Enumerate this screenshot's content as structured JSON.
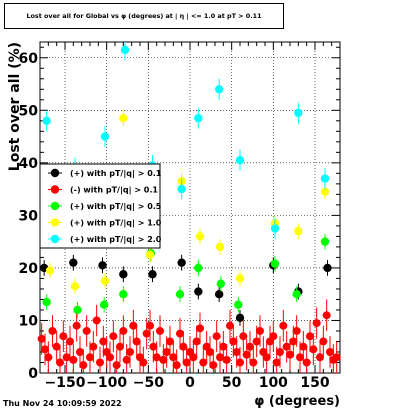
{
  "title": "Lost over all for Global vs φ (degrees) at | η | <= 1.0 at pT > 0.11",
  "timestamp": "Thu Nov 24 10:09:59 2022",
  "chart_data": {
    "type": "scatter",
    "title": "Lost over all for Global vs φ (degrees) at | η | <= 1.0 at pT > 0.11",
    "xlabel": "φ (degrees)",
    "ylabel": "Lost over all (%)",
    "xlim": [
      -180,
      180
    ],
    "ylim": [
      0,
      63
    ],
    "xticks": [
      -150,
      -100,
      -50,
      0,
      50,
      100,
      150
    ],
    "xtick_labels": [
      "−150",
      "−100",
      "−50",
      "0",
      "50",
      "100",
      "150"
    ],
    "yticks": [
      0,
      10,
      20,
      30,
      40,
      50,
      60
    ],
    "grid": true,
    "legend_position": "middle-left",
    "series": [
      {
        "name": "(+) with pT/|q| > 0.1",
        "color": "#000000",
        "x": [
          -175,
          -140,
          -105,
          -80,
          -45,
          -10,
          10,
          35,
          60,
          100,
          130,
          165
        ],
        "y": [
          20,
          21,
          20.5,
          18.8,
          18.8,
          21,
          15.5,
          15,
          10.5,
          20.5,
          15.5,
          20
        ],
        "yerr": [
          1.5,
          1.5,
          1.5,
          1.5,
          1.5,
          1.5,
          1.5,
          1.5,
          1.5,
          1.5,
          1.5,
          1.5
        ]
      },
      {
        "name": "(-) with pT/|q| > 0.1",
        "color": "#ff0000",
        "x": [
          -178,
          -174,
          -170,
          -165,
          -160,
          -156,
          -152,
          -148,
          -144,
          -140,
          -136,
          -132,
          -128,
          -124,
          -120,
          -116,
          -112,
          -108,
          -104,
          -100,
          -96,
          -92,
          -88,
          -84,
          -80,
          -76,
          -72,
          -68,
          -64,
          -60,
          -56,
          -52,
          -48,
          -44,
          -40,
          -36,
          -32,
          -28,
          -24,
          -20,
          -16,
          -12,
          -8,
          -4,
          0,
          4,
          8,
          12,
          16,
          20,
          24,
          28,
          32,
          36,
          40,
          44,
          48,
          52,
          56,
          60,
          64,
          68,
          72,
          76,
          80,
          84,
          88,
          92,
          96,
          100,
          104,
          108,
          112,
          116,
          120,
          124,
          128,
          132,
          136,
          140,
          144,
          148,
          152,
          156,
          160,
          164,
          168,
          172,
          176
        ],
        "y": [
          6.5,
          4.5,
          3,
          8,
          5,
          2,
          7,
          3,
          6,
          2.5,
          9,
          4,
          1.5,
          8,
          3,
          5,
          10,
          2,
          6,
          4,
          3,
          7,
          1.5,
          5,
          8,
          2.5,
          4,
          9,
          6,
          3,
          2,
          7.5,
          9,
          5,
          3,
          8,
          2.5,
          4,
          6,
          3,
          1.5,
          7.5,
          5,
          2,
          4,
          3,
          6,
          8.5,
          2,
          5,
          4,
          1.5,
          7,
          3,
          5,
          2.5,
          9,
          6,
          4,
          2,
          7,
          3.5,
          5,
          2,
          6,
          8,
          4,
          3,
          6,
          7,
          2,
          4,
          9,
          5,
          3.5,
          6,
          8,
          3,
          5,
          2,
          7,
          4.5,
          9.5,
          3,
          6,
          11,
          4,
          2.5,
          3
        ],
        "yerr": [
          3,
          3,
          3,
          3,
          3,
          3,
          3,
          3,
          3,
          3,
          3,
          3,
          3,
          3,
          3,
          3,
          3,
          3,
          3,
          3,
          3,
          3,
          3,
          3,
          3,
          3,
          3,
          3,
          3,
          3,
          3,
          3,
          3,
          3,
          3,
          3,
          3,
          3,
          3,
          3,
          3,
          3,
          3,
          3,
          3,
          3,
          3,
          3,
          3,
          3,
          3,
          3,
          3,
          3,
          3,
          3,
          3,
          3,
          3,
          3,
          3,
          3,
          3,
          3,
          3,
          3,
          3,
          3,
          3,
          3,
          3,
          3,
          3,
          3,
          3,
          3,
          3,
          3,
          3,
          3,
          3,
          3,
          3,
          3,
          3,
          3,
          3,
          3,
          3
        ]
      },
      {
        "name": "(+) with pT/|q| > 0.5",
        "color": "#00ff00",
        "x": [
          -172,
          -135,
          -103,
          -80,
          -47,
          -12,
          10,
          37,
          58,
          102,
          128,
          162
        ],
        "y": [
          13.5,
          12,
          13,
          15,
          22.8,
          15,
          20,
          17,
          13,
          20.8,
          15,
          25
        ],
        "yerr": [
          1.5,
          1.5,
          1.5,
          1.5,
          1.5,
          1.5,
          1.5,
          1.5,
          1.5,
          1.5,
          1.5,
          1.5
        ]
      },
      {
        "name": "(+) with pT/|q| > 1.0",
        "color": "#ffff00",
        "x": [
          -168,
          -138,
          -102,
          -80,
          -48,
          -10,
          12,
          36,
          60,
          102,
          130,
          162
        ],
        "y": [
          19.5,
          16.5,
          17.5,
          48.5,
          22.5,
          36.5,
          26,
          24,
          18,
          28.5,
          27,
          34.5
        ],
        "yerr": [
          1.5,
          1.5,
          1.5,
          1.5,
          1.5,
          1.5,
          1.5,
          1.5,
          1.5,
          1.5,
          1.5,
          1.5
        ]
      },
      {
        "name": "(+) with pT/|q| > 2.0",
        "color": "#00ffff",
        "x": [
          -172,
          -138,
          -102,
          -78,
          -45,
          -10,
          10,
          35,
          60,
          102,
          130,
          162
        ],
        "y": [
          48,
          39,
          45,
          61.5,
          39.5,
          35,
          48.5,
          54,
          40.5,
          27.5,
          49.5,
          37
        ],
        "yerr": [
          2,
          2,
          2,
          2,
          2,
          2,
          2,
          2,
          2,
          2,
          2,
          2
        ]
      }
    ]
  }
}
